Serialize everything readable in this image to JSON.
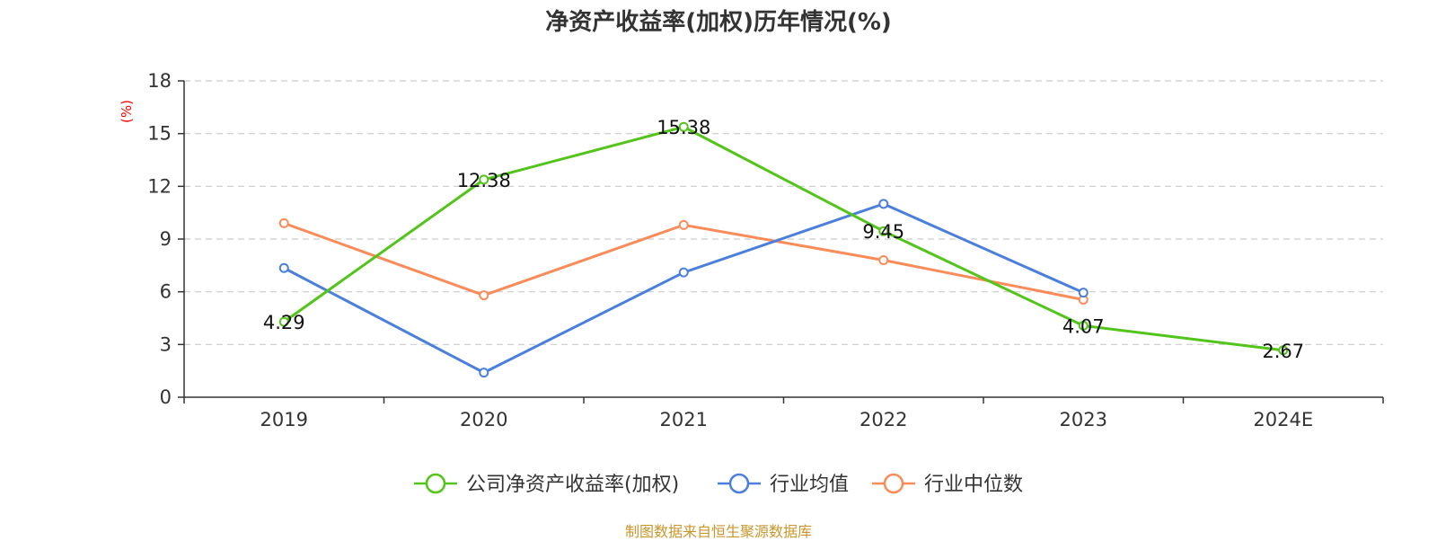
{
  "chart_data": {
    "type": "line",
    "title": "净资产收益率(加权)历年情况(%)",
    "ylabel": "(%)",
    "xlabel": "",
    "categories": [
      "2019",
      "2020",
      "2021",
      "2022",
      "2023",
      "2024E"
    ],
    "ylim": [
      0,
      18
    ],
    "yticks": [
      0,
      3,
      6,
      9,
      12,
      15,
      18
    ],
    "grid": true,
    "legend_position": "bottom",
    "series": [
      {
        "name": "公司净资产收益率(加权)",
        "color": "#52c41a",
        "values": [
          4.29,
          12.38,
          15.38,
          9.45,
          4.07,
          2.67
        ],
        "labels": [
          "4.29",
          "12.38",
          "15.38",
          "9.45",
          "4.07",
          "2.67"
        ]
      },
      {
        "name": "行业均值",
        "color": "#4a7fdc",
        "values": [
          7.35,
          1.4,
          7.1,
          11.0,
          5.95,
          null
        ]
      },
      {
        "name": "行业中位数",
        "color": "#fa8c5a",
        "values": [
          9.9,
          5.8,
          9.8,
          7.8,
          5.55,
          null
        ]
      }
    ]
  },
  "source_note": "制图数据来自恒生聚源数据库",
  "colors": {
    "axis": "#333333",
    "grid": "#cccccc",
    "ylabel": "#ff0000",
    "source": "#c8962a"
  }
}
